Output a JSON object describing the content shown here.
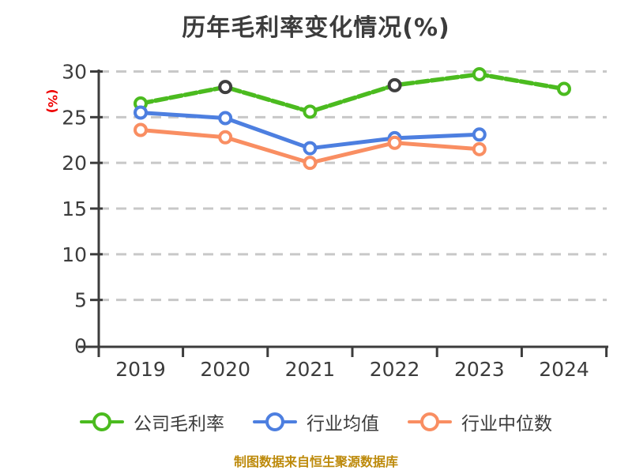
{
  "title": "历年毛利率变化情况(%)",
  "ylabel": "(%)",
  "footer": "制图数据来自恒生聚源数据库",
  "colors": {
    "background": "#FFFFFF",
    "title_text": "#3C3C3C",
    "axis_text": "#3C3C3C",
    "axis_line": "#3C3C3C",
    "gridline": "#C8C8C8",
    "ylabel_text": "#EE0000",
    "footer_text": "#BD8A0B",
    "marker_fill": "#FFFFFF",
    "legend_text": "#3C3C3C"
  },
  "chart_data": {
    "type": "line",
    "title": "历年毛利率变化情况(%)",
    "xlabel": "",
    "ylabel": "(%)",
    "categories": [
      "2019",
      "2020",
      "2021",
      "2022",
      "2023",
      "2024"
    ],
    "y_ticks": [
      30,
      25,
      20,
      15,
      10,
      5,
      0
    ],
    "ylim": [
      0,
      30
    ],
    "grid": "horizontal-dashed",
    "legend_position": "bottom",
    "series": [
      {
        "key": "company-gross-margin",
        "name": "公司毛利率",
        "color": "#4BBB1F",
        "line_style": "dashed",
        "values": [
          26.5,
          28.3,
          25.6,
          28.5,
          29.7,
          28.1
        ],
        "marker_edge_colors": [
          "#4BBB1F",
          "#3F3F3F",
          "#4BBB1F",
          "#3F3F3F",
          "#4BBB1F",
          "#4BBB1F"
        ]
      },
      {
        "key": "industry-average",
        "name": "行业均值",
        "color": "#4D7FE0",
        "line_style": "solid",
        "values": [
          25.5,
          24.9,
          21.6,
          22.7,
          23.1,
          null
        ]
      },
      {
        "key": "industry-median",
        "name": "行业中位数",
        "color": "#F98E62",
        "line_style": "solid",
        "values": [
          23.6,
          22.8,
          20.0,
          22.2,
          21.5,
          null
        ]
      }
    ],
    "source_note": "制图数据来自恒生聚源数据库"
  }
}
